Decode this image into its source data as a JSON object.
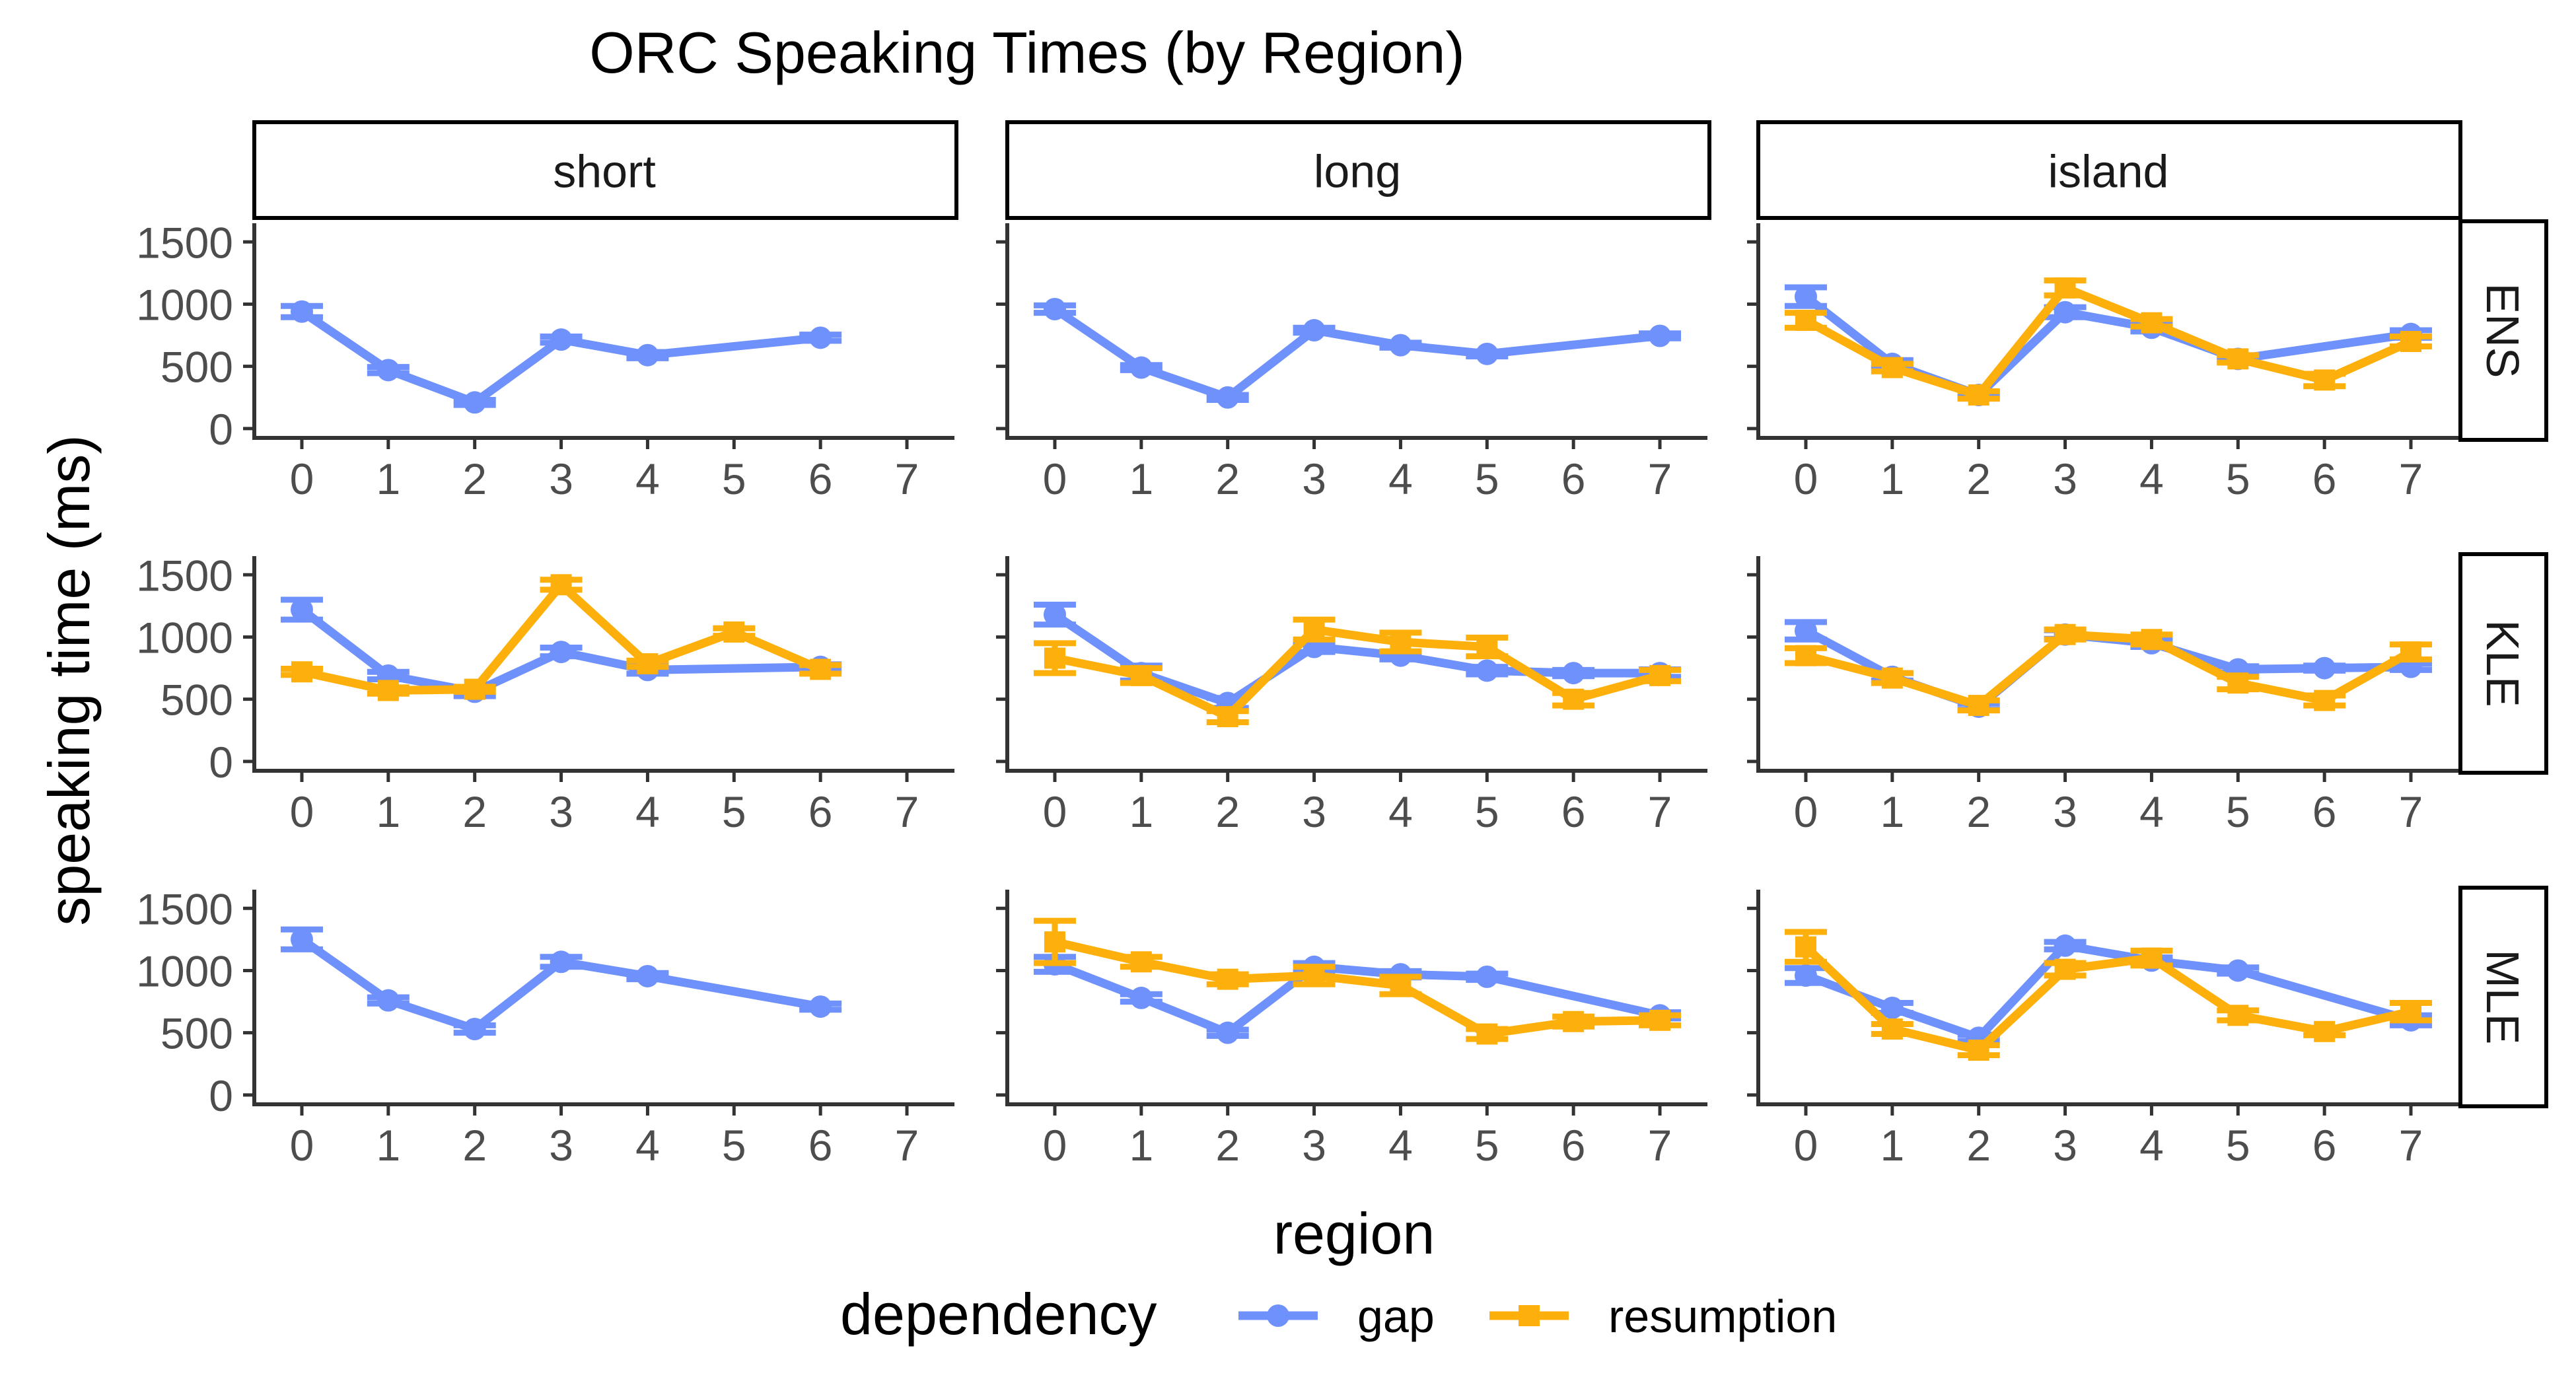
{
  "chart_data": {
    "type": "line",
    "title": "ORC Speaking Times (by Region)",
    "xlabel": "region",
    "ylabel": "speaking time (ms)",
    "x_ticks": [
      0,
      1,
      2,
      3,
      4,
      5,
      6,
      7
    ],
    "y_ticks": [
      0,
      500,
      1000,
      1500
    ],
    "xlim": [
      -0.55,
      7.55
    ],
    "ylim": [
      -75,
      1650
    ],
    "columns": [
      "short",
      "long",
      "island"
    ],
    "rows": [
      "ENS",
      "KLE",
      "MLE"
    ],
    "legend": {
      "title": "dependency",
      "placement": "bottom",
      "entries": [
        {
          "label": "gap",
          "color": "#6f91fb",
          "marker": "circle"
        },
        {
          "label": "resumption",
          "color": "#fdb00c",
          "marker": "square"
        }
      ]
    },
    "grid": false,
    "panels": [
      {
        "column": "short",
        "row": "ENS",
        "series": [
          {
            "name": "gap",
            "x": [
              0,
              1,
              2,
              3,
              4,
              6
            ],
            "y": [
              940,
              470,
              210,
              715,
              590,
              730
            ],
            "err": [
              45,
              25,
              20,
              25,
              25,
              25
            ]
          }
        ]
      },
      {
        "column": "long",
        "row": "ENS",
        "series": [
          {
            "name": "gap",
            "x": [
              0,
              1,
              2,
              3,
              4,
              5,
              7
            ],
            "y": [
              960,
              490,
              250,
              790,
              670,
              600,
              745
            ],
            "err": [
              30,
              20,
              20,
              20,
              20,
              20,
              20
            ]
          }
        ]
      },
      {
        "column": "island",
        "row": "ENS",
        "series": [
          {
            "name": "gap",
            "x": [
              0,
              1,
              2,
              3,
              4,
              5,
              7
            ],
            "y": [
              1060,
              520,
              270,
              935,
              810,
              560,
              760
            ],
            "err": [
              75,
              30,
              20,
              40,
              30,
              20,
              30
            ]
          },
          {
            "name": "resumption",
            "x": [
              0,
              1,
              2,
              3,
              4,
              5,
              6,
              7
            ],
            "y": [
              870,
              490,
              270,
              1130,
              850,
              560,
              390,
              700
            ],
            "err": [
              60,
              30,
              30,
              60,
              30,
              30,
              50,
              40
            ]
          }
        ]
      },
      {
        "column": "short",
        "row": "KLE",
        "series": [
          {
            "name": "gap",
            "x": [
              0,
              1,
              2,
              3,
              4,
              6
            ],
            "y": [
              1220,
              690,
              560,
              880,
              735,
              760
            ],
            "err": [
              80,
              30,
              35,
              35,
              30,
              20
            ]
          },
          {
            "name": "resumption",
            "x": [
              0,
              1,
              2,
              3,
              4,
              5,
              6
            ],
            "y": [
              720,
              570,
              580,
              1420,
              785,
              1040,
              740
            ],
            "err": [
              25,
              25,
              20,
              40,
              25,
              30,
              35
            ]
          }
        ]
      },
      {
        "column": "long",
        "row": "KLE",
        "series": [
          {
            "name": "gap",
            "x": [
              0,
              1,
              2,
              3,
              4,
              5,
              6,
              7
            ],
            "y": [
              1180,
              710,
              470,
              920,
              850,
              730,
              710,
              710
            ],
            "err": [
              80,
              60,
              40,
              40,
              30,
              30,
              25,
              30
            ]
          },
          {
            "name": "resumption",
            "x": [
              0,
              1,
              2,
              3,
              4,
              5,
              6,
              7
            ],
            "y": [
              830,
              690,
              360,
              1060,
              960,
              920,
              500,
              690
            ],
            "err": [
              120,
              60,
              45,
              80,
              75,
              75,
              50,
              45
            ]
          }
        ]
      },
      {
        "column": "island",
        "row": "KLE",
        "series": [
          {
            "name": "gap",
            "x": [
              0,
              1,
              2,
              3,
              4,
              5,
              6,
              7
            ],
            "y": [
              1050,
              680,
              440,
              1020,
              950,
              740,
              750,
              760
            ],
            "err": [
              70,
              30,
              25,
              35,
              30,
              25,
              20,
              25
            ]
          },
          {
            "name": "resumption",
            "x": [
              0,
              1,
              2,
              3,
              4,
              5,
              6,
              7
            ],
            "y": [
              850,
              670,
              450,
              1020,
              980,
              630,
              490,
              880
            ],
            "err": [
              60,
              40,
              40,
              40,
              40,
              50,
              40,
              60
            ]
          }
        ]
      },
      {
        "column": "short",
        "row": "MLE",
        "series": [
          {
            "name": "gap",
            "x": [
              0,
              1,
              2,
              3,
              4,
              6
            ],
            "y": [
              1250,
              760,
              530,
              1070,
              955,
              710
            ],
            "err": [
              80,
              25,
              30,
              40,
              25,
              25
            ]
          }
        ]
      },
      {
        "column": "long",
        "row": "MLE",
        "series": [
          {
            "name": "gap",
            "x": [
              0,
              1,
              2,
              3,
              4,
              5,
              7
            ],
            "y": [
              1050,
              780,
              500,
              1030,
              970,
              950,
              640
            ],
            "err": [
              60,
              30,
              25,
              30,
              25,
              25,
              25
            ]
          },
          {
            "name": "resumption",
            "x": [
              0,
              1,
              2,
              3,
              4,
              5,
              6,
              7
            ],
            "y": [
              1230,
              1070,
              930,
              960,
              880,
              490,
              590,
              600
            ],
            "err": [
              170,
              40,
              40,
              70,
              70,
              40,
              40,
              40
            ]
          }
        ]
      },
      {
        "column": "island",
        "row": "MLE",
        "series": [
          {
            "name": "gap",
            "x": [
              0,
              1,
              2,
              3,
              4,
              5,
              7
            ],
            "y": [
              960,
              700,
              460,
              1200,
              1080,
              1000,
              600
            ],
            "err": [
              60,
              40,
              25,
              30,
              25,
              25,
              40
            ]
          },
          {
            "name": "resumption",
            "x": [
              0,
              1,
              2,
              3,
              4,
              5,
              6,
              7
            ],
            "y": [
              1190,
              530,
              360,
              1010,
              1100,
              640,
              510,
              670
            ],
            "err": [
              120,
              40,
              40,
              50,
              60,
              40,
              30,
              70
            ]
          }
        ]
      }
    ]
  }
}
